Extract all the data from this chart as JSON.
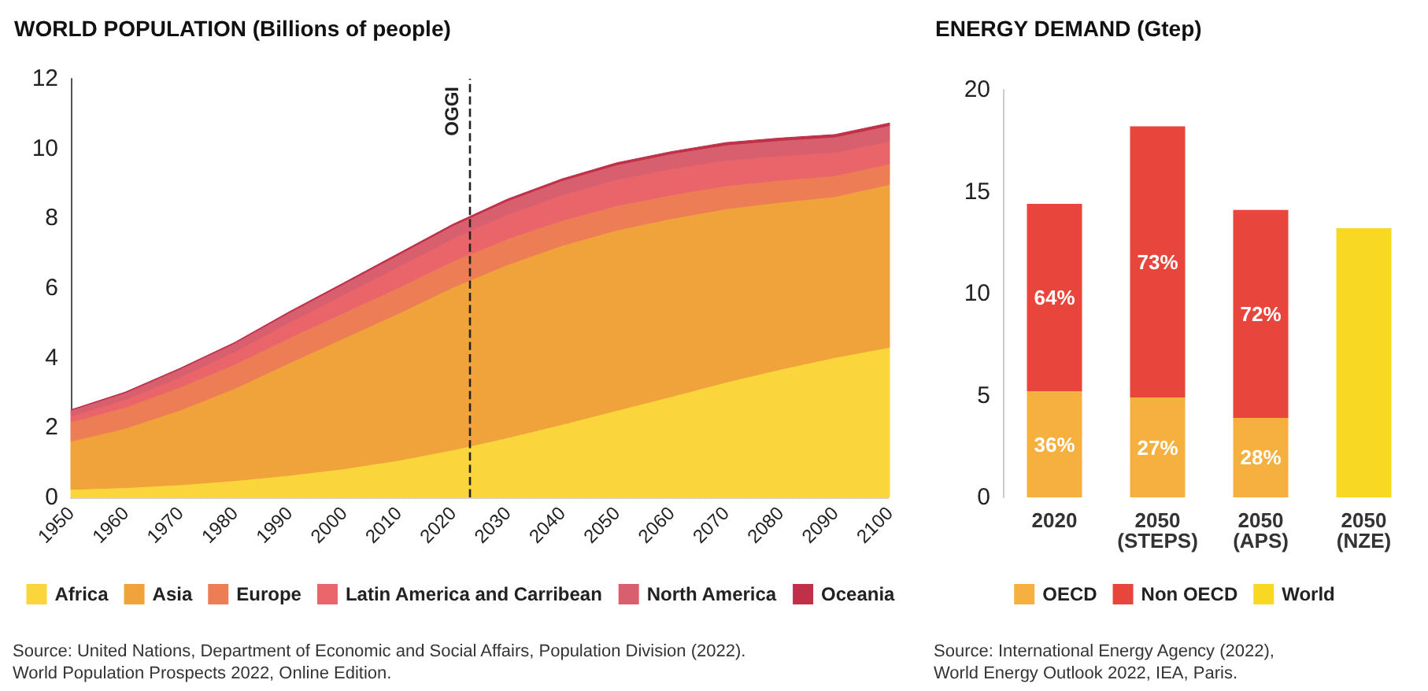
{
  "chart_data": [
    {
      "type": "area",
      "title": "WORLD POPULATION (Billions of people)",
      "stacked": true,
      "legend": "bottom",
      "grid": false,
      "x": [
        1950,
        1960,
        1970,
        1980,
        1990,
        2000,
        2010,
        2020,
        2030,
        2040,
        2050,
        2060,
        2070,
        2080,
        2090,
        2100
      ],
      "xlim": [
        1950,
        2100
      ],
      "xticks": [
        1950,
        1960,
        1970,
        1980,
        1990,
        2000,
        2010,
        2020,
        2030,
        2040,
        2050,
        2060,
        2070,
        2080,
        2090,
        2100
      ],
      "ylim": [
        0,
        12
      ],
      "yticks": [
        0,
        2,
        4,
        6,
        8,
        10,
        12
      ],
      "series": [
        {
          "name": "Africa",
          "color": "#fbd53c",
          "values": [
            0.23,
            0.28,
            0.36,
            0.48,
            0.63,
            0.82,
            1.06,
            1.36,
            1.71,
            2.09,
            2.49,
            2.89,
            3.3,
            3.67,
            4.01,
            4.3
          ]
        },
        {
          "name": "Asia",
          "color": "#f0a33a",
          "values": [
            1.38,
            1.7,
            2.14,
            2.64,
            3.22,
            3.74,
            4.21,
            4.66,
            4.96,
            5.13,
            5.17,
            5.1,
            4.97,
            4.79,
            4.61,
            4.67
          ]
        },
        {
          "name": "Europe",
          "color": "#ec7d55",
          "values": [
            0.55,
            0.6,
            0.66,
            0.69,
            0.72,
            0.73,
            0.74,
            0.75,
            0.74,
            0.72,
            0.7,
            0.68,
            0.66,
            0.63,
            0.6,
            0.59
          ]
        },
        {
          "name": "Latin America and Carribean",
          "color": "#e9656a",
          "values": [
            0.17,
            0.22,
            0.29,
            0.36,
            0.44,
            0.52,
            0.6,
            0.65,
            0.7,
            0.73,
            0.75,
            0.75,
            0.73,
            0.7,
            0.67,
            0.65
          ]
        },
        {
          "name": "North America",
          "color": "#d85f6e",
          "values": [
            0.17,
            0.2,
            0.23,
            0.25,
            0.28,
            0.31,
            0.34,
            0.37,
            0.39,
            0.41,
            0.42,
            0.43,
            0.44,
            0.44,
            0.44,
            0.45
          ]
        },
        {
          "name": "Oceania",
          "color": "#c03049",
          "values": [
            0.01,
            0.02,
            0.02,
            0.02,
            0.03,
            0.03,
            0.04,
            0.04,
            0.05,
            0.05,
            0.06,
            0.06,
            0.07,
            0.07,
            0.07,
            0.07
          ]
        }
      ],
      "ref_lines": [
        {
          "axis": "x",
          "value": 2023,
          "label": "OGGI",
          "color": "#222222",
          "line_style": "dashed"
        }
      ],
      "annotations": [
        "Source: United Nations, Department of Economic and Social Affairs, Population Division (2022).\nWorld Population Prospects 2022, Online Edition."
      ]
    },
    {
      "type": "bar",
      "title": "ENERGY DEMAND (Gtep)",
      "stacked": true,
      "legend": "bottom",
      "grid": false,
      "categories": [
        "2020",
        "2050\n(STEPS)",
        "2050\n(APS)",
        "2050\n(NZE)"
      ],
      "ylim": [
        0,
        20
      ],
      "yticks": [
        0,
        5,
        10,
        15,
        20
      ],
      "series": [
        {
          "name": "OECD",
          "color": "#f5b03f",
          "values": [
            5.2,
            4.9,
            3.9,
            null
          ]
        },
        {
          "name": "Non OECD",
          "color": "#e8453c",
          "values": [
            9.2,
            13.3,
            10.2,
            null
          ]
        },
        {
          "name": "World",
          "color": "#f9d823",
          "values": [
            null,
            null,
            null,
            13.2
          ]
        }
      ],
      "annotations": [
        "Source: International Energy Agency (2022),\nWorld Energy Outlook 2022, IEA, Paris.",
        "36%",
        "64%",
        "27%",
        "73%",
        "28%",
        "72%"
      ]
    }
  ]
}
